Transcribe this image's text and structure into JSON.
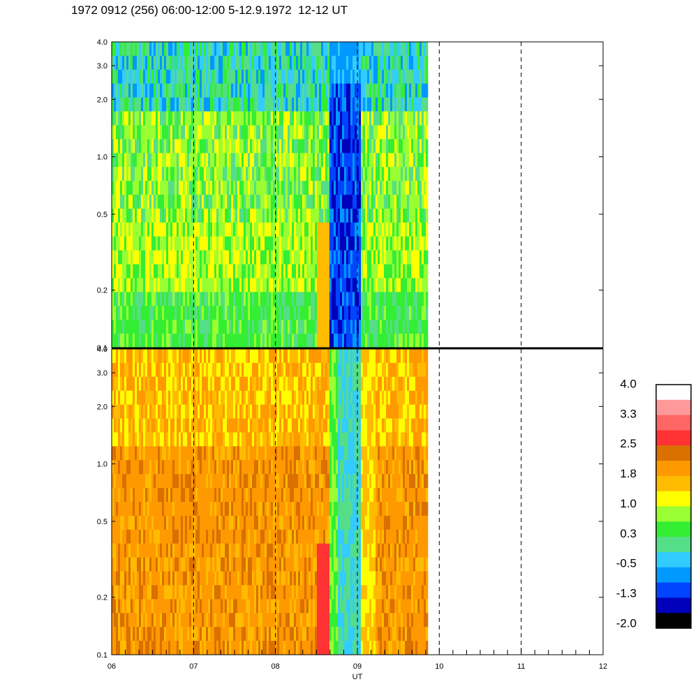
{
  "title": "1972 0912 (256) 06:00-12:00 5-12.9.1972  12-12 UT",
  "chart_data": {
    "type": "heatmap",
    "title": "1972 0912 (256) 06:00-12:00 5-12.9.1972  12-12 UT",
    "xlabel": "UT",
    "x_range": [
      6,
      12
    ],
    "x_ticks": [
      "06",
      "07",
      "08",
      "09",
      "10",
      "11",
      "12"
    ],
    "data_end_hour": 9.85,
    "y_scale": "log",
    "panels": [
      {
        "name": "top",
        "y_range": [
          0.1,
          4.0
        ],
        "y_ticks": [
          0.1,
          0.2,
          0.5,
          1.0,
          2.0,
          3.0,
          4.0
        ],
        "y_tick_labels": [
          "0.1",
          "0.2",
          "0.5",
          "1.0",
          "2.0",
          "3.0",
          "4.0"
        ]
      },
      {
        "name": "bottom",
        "y_range": [
          0.1,
          4.0
        ],
        "y_ticks": [
          0.1,
          0.2,
          0.5,
          1.0,
          2.0,
          3.0,
          4.0
        ],
        "y_tick_labels": [
          "0.1",
          "0.2",
          "0.5",
          "1.0",
          "2.0",
          "3.0",
          "4.0"
        ]
      }
    ],
    "colorbar": {
      "labels": [
        "4.0",
        "3.3",
        "2.5",
        "1.8",
        "1.0",
        "0.3",
        "-0.5",
        "-1.3",
        "-2.0"
      ],
      "colors": [
        "#ffffff",
        "#ff9999",
        "#ff6666",
        "#ff3333",
        "#d97000",
        "#ff9900",
        "#ffbb00",
        "#ffff00",
        "#99ff33",
        "#33ee33",
        "#55dd88",
        "#33ccff",
        "#0099ff",
        "#0044ff",
        "#0000bb",
        "#000000"
      ]
    }
  }
}
